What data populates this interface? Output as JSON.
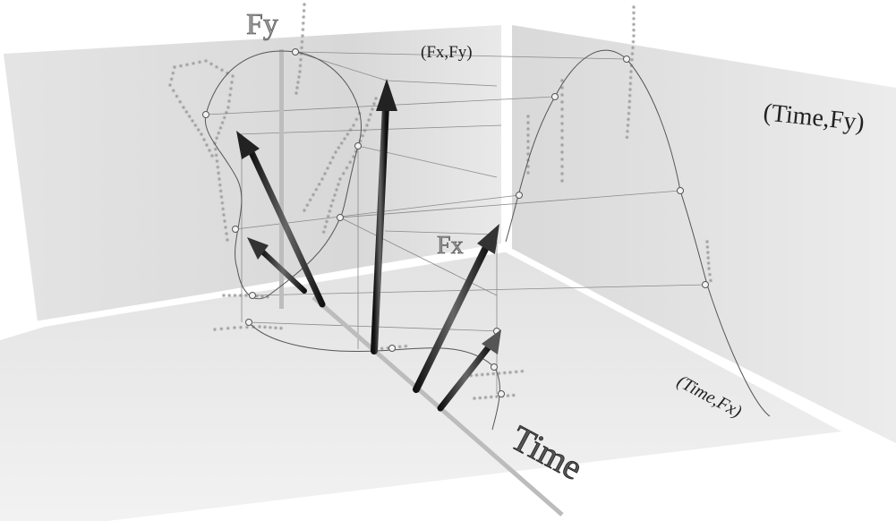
{
  "labels": {
    "fy_axis": "Fy",
    "fx_axis": "Fx",
    "time_axis": "Time",
    "panel_fx_fy": "(Fx,Fy)",
    "panel_time_fy": "(Time,Fy)",
    "panel_time_fx": "(Time,Fx)"
  },
  "colors": {
    "background": "#ffffff",
    "wall": "#dcdcdc",
    "floor": "#e6e6e6",
    "arrow": "#2b2b2b",
    "curve": "#555555",
    "dots": "#9a9a9a"
  },
  "vectors": {
    "count": 5,
    "icon": "force-arrow"
  }
}
